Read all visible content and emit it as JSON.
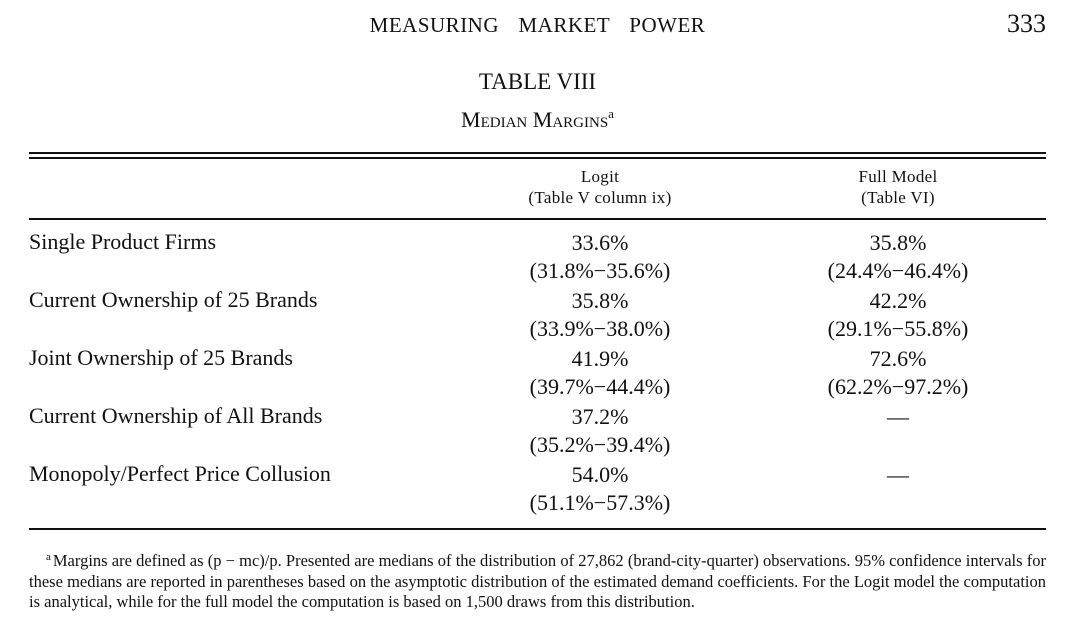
{
  "header": {
    "running_title": "MEASURING  MARKET  POWER",
    "page_number": "333"
  },
  "table": {
    "label": "TABLE VIII",
    "caption": "Median Margins",
    "caption_marker": "a",
    "columns": [
      {
        "line1": "Logit",
        "line2": "(Table V column ix)"
      },
      {
        "line1": "Full Model",
        "line2": "(Table VI)"
      }
    ],
    "rows": [
      {
        "label": "Single Product Firms",
        "logit": {
          "median": "33.6%",
          "ci": "(31.8%−35.6%)"
        },
        "full": {
          "median": "35.8%",
          "ci": "(24.4%−46.4%)"
        }
      },
      {
        "label": "Current Ownership of 25 Brands",
        "logit": {
          "median": "35.8%",
          "ci": "(33.9%−38.0%)"
        },
        "full": {
          "median": "42.2%",
          "ci": "(29.1%−55.8%)"
        }
      },
      {
        "label": "Joint Ownership of 25 Brands",
        "logit": {
          "median": "41.9%",
          "ci": "(39.7%−44.4%)"
        },
        "full": {
          "median": "72.6%",
          "ci": "(62.2%−97.2%)"
        }
      },
      {
        "label": "Current Ownership of All Brands",
        "logit": {
          "median": "37.2%",
          "ci": "(35.2%−39.4%)"
        },
        "full": {
          "median": "—",
          "ci": ""
        }
      },
      {
        "label": "Monopoly/Perfect Price Collusion",
        "logit": {
          "median": "54.0%",
          "ci": "(51.1%−57.3%)"
        },
        "full": {
          "median": "—",
          "ci": ""
        }
      }
    ]
  },
  "footnote": {
    "marker": "a",
    "text": "Margins are defined as (p − mc)/p. Presented are medians of the distribution of 27,862 (brand-city-quarter) observations. 95% confidence intervals for these medians are reported in parentheses based on the asymptotic distribution of the estimated demand coefficients. For the Logit model the computation is analytical, while for the full model the computation is based on 1,500 draws from this distribution."
  }
}
